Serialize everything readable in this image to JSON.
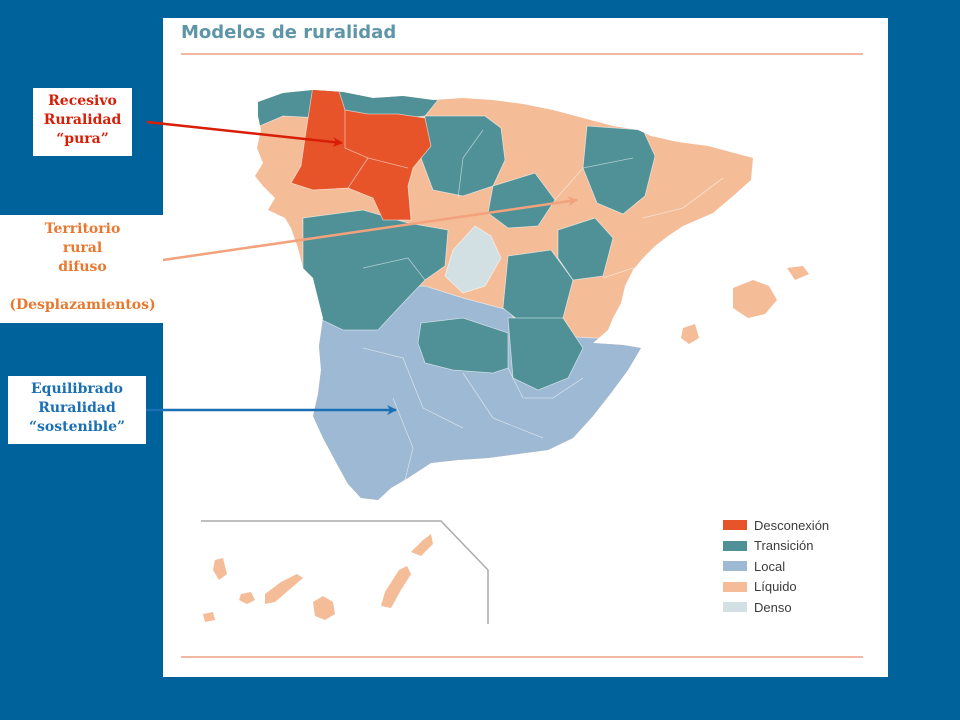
{
  "title": "Modelos de ruralidad",
  "annotations": {
    "recesivo": {
      "line1": "Recesivo",
      "line2": "Ruralidad",
      "line3": "“pura”"
    },
    "territorio": {
      "line1": "Territorio",
      "line2": "rural",
      "line3": "difuso",
      "line4": "(Desplazamientos)"
    },
    "equilibrado": {
      "line1": "Equilibrado",
      "line2": "Ruralidad",
      "line3": "“sostenible”"
    }
  },
  "legend": [
    {
      "label": "Desconexión",
      "color": "#e8542a"
    },
    {
      "label": "Transición",
      "color": "#4f9197"
    },
    {
      "label": "Local",
      "color": "#9eb9d3"
    },
    {
      "label": "Líquido",
      "color": "#f5bc98"
    },
    {
      "label": "Denso",
      "color": "#d3e0e3"
    }
  ],
  "colors": {
    "background": "#00629b",
    "desconexion": "#e8542a",
    "transicion": "#4f9197",
    "local": "#9eb9d3",
    "liquido": "#f5bc98",
    "denso": "#d3e0e3",
    "arrow_red": "#d81e05",
    "arrow_orange": "#f2a27c",
    "arrow_blue": "#1b6fb4"
  }
}
